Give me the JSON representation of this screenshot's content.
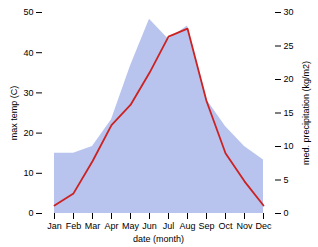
{
  "chart_data": {
    "type": "line",
    "xlabel": "date (month)",
    "ylabel": "max temp (C)",
    "y2label": "med. precipitation (kg/m2)",
    "categories": [
      "Jan",
      "Feb",
      "Mar",
      "Apr",
      "May",
      "Jun",
      "Jul",
      "Aug",
      "Sep",
      "Oct",
      "Nov",
      "Dec"
    ],
    "series": [
      {
        "type": "area",
        "axis": "y2",
        "color": "#b8c4ee",
        "values": [
          9,
          9,
          10,
          14,
          22,
          29,
          26,
          28,
          17,
          13,
          10,
          8
        ]
      },
      {
        "type": "line",
        "axis": "y",
        "color": "#cc2222",
        "values": [
          2,
          5,
          13,
          22,
          27,
          35,
          44,
          46,
          28,
          15,
          8,
          2
        ]
      }
    ],
    "ylim": [
      0,
      50
    ],
    "yticks": [
      0,
      10,
      20,
      30,
      40,
      50
    ],
    "y2lim": [
      0,
      30
    ],
    "y2ticks": [
      0,
      5,
      10,
      15,
      20,
      25,
      30
    ]
  }
}
